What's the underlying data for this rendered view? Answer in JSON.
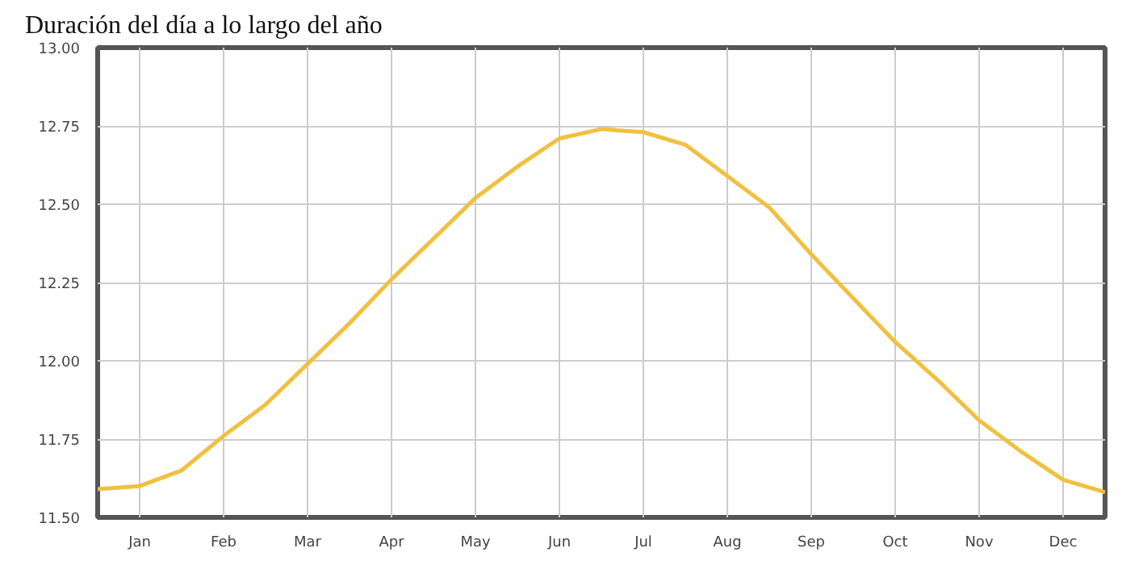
{
  "chart_data": {
    "type": "line",
    "title": "Duración del día a lo largo del año",
    "categories": [
      null,
      "Jan",
      null,
      "Feb",
      null,
      "Mar",
      null,
      "Apr",
      null,
      "May",
      null,
      "Jun",
      null,
      "Jul",
      null,
      "Aug",
      null,
      "Sep",
      null,
      "Oct",
      null,
      "Nov",
      null,
      "Dec",
      null
    ],
    "series": [
      {
        "color": "#f0c040",
        "values": [
          11.59,
          11.6,
          11.65,
          11.76,
          11.86,
          11.99,
          12.12,
          12.26,
          12.39,
          12.52,
          12.62,
          12.71,
          12.74,
          12.73,
          12.69,
          12.59,
          12.49,
          12.34,
          12.2,
          12.06,
          11.94,
          11.81,
          11.71,
          11.62,
          11.58
        ]
      }
    ],
    "ylim": [
      11.5,
      13.0
    ],
    "yticks": [
      {
        "value": 11.5,
        "label": "11.50"
      },
      {
        "value": 11.75,
        "label": "11.75"
      },
      {
        "value": 12.0,
        "label": "12.00"
      },
      {
        "value": 12.25,
        "label": "12.25"
      },
      {
        "value": 12.5,
        "label": "12.50"
      },
      {
        "value": 12.75,
        "label": "12.75"
      },
      {
        "value": 13.0,
        "label": "13.00"
      }
    ],
    "grid": true,
    "marker": "none",
    "line_style": "solid"
  }
}
